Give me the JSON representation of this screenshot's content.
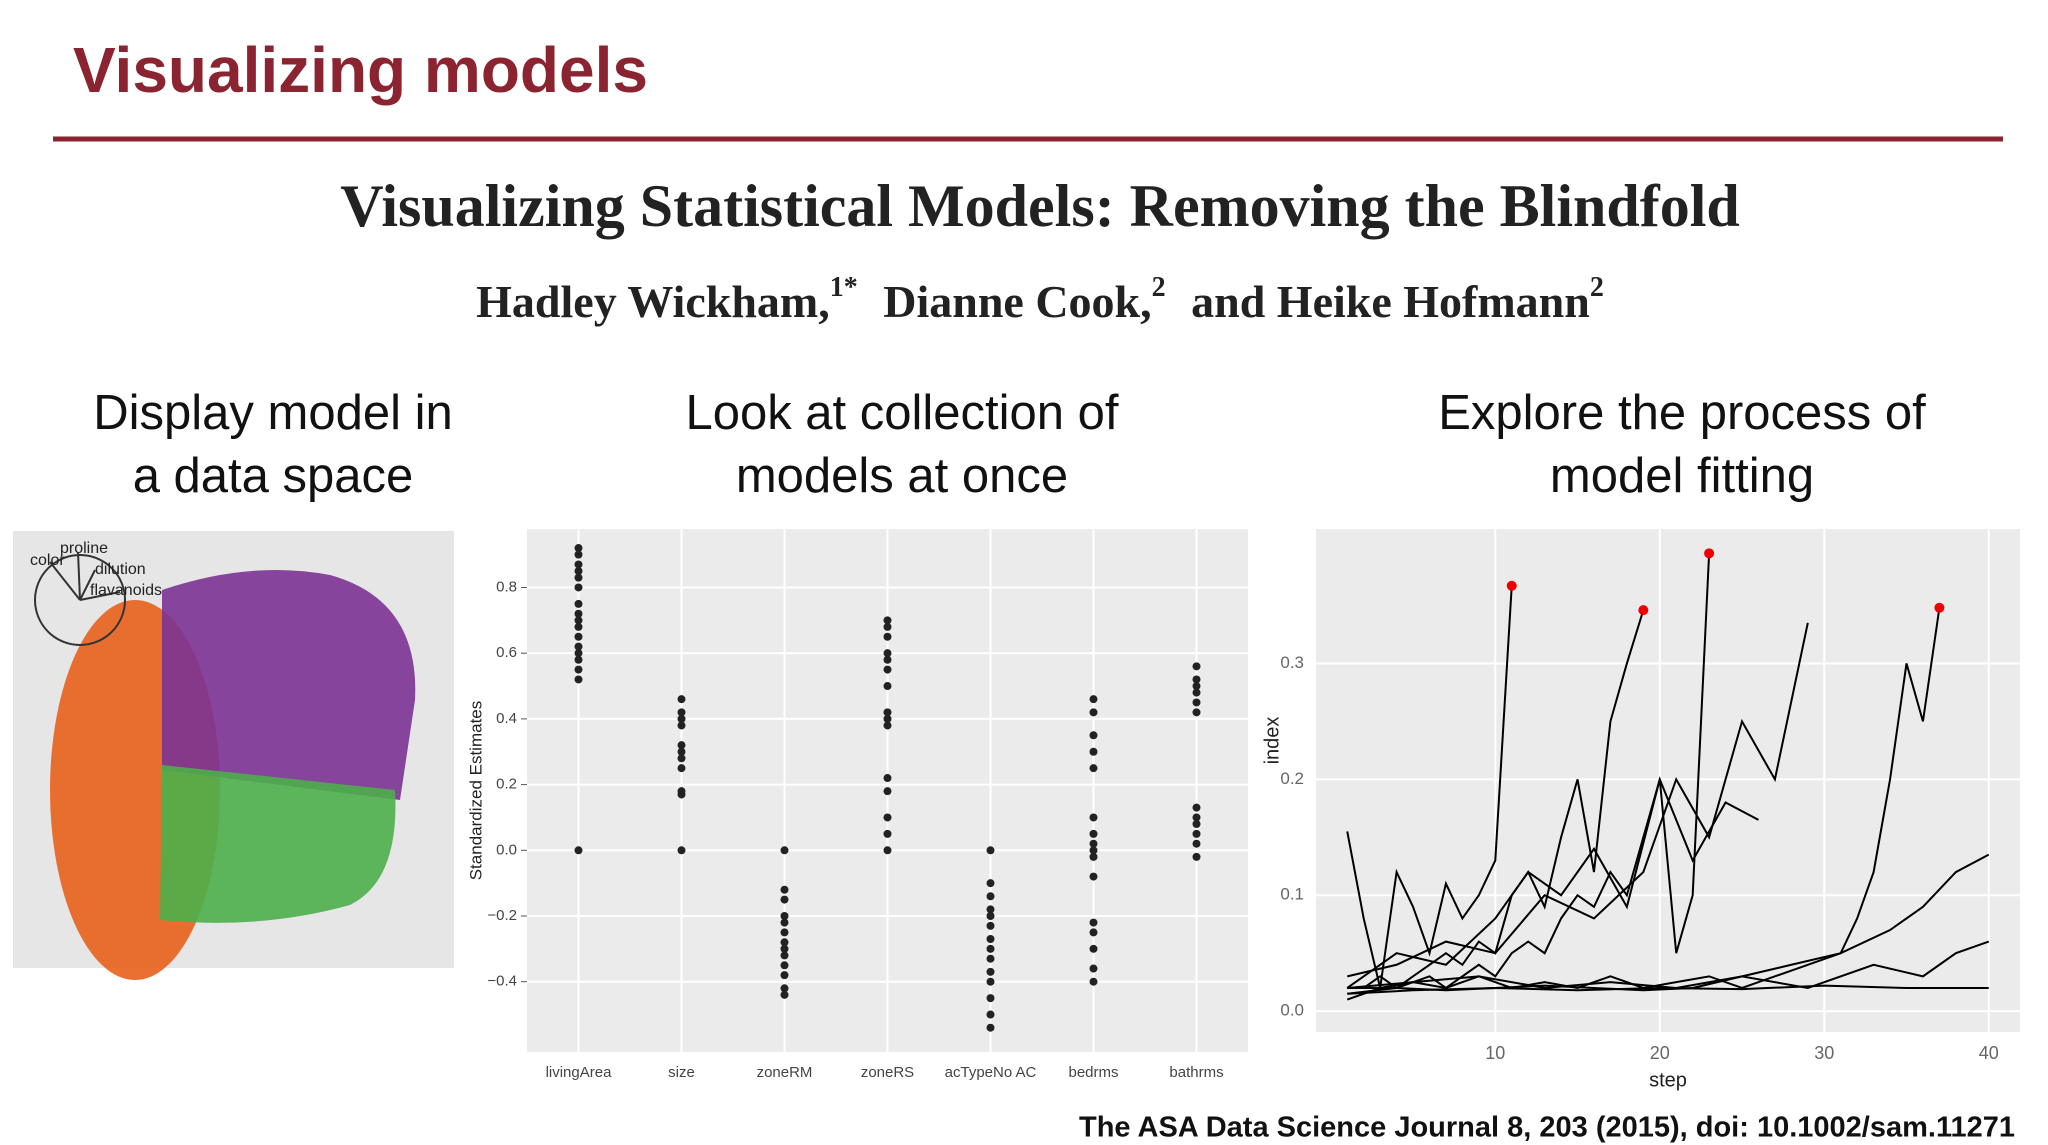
{
  "header": {
    "title": "Visualizing models"
  },
  "paper": {
    "title": "Visualizing Statistical Models: Removing the Blindfold",
    "authors": [
      {
        "name": "Hadley Wickham,",
        "sup": "1*"
      },
      {
        "name": "Dianne Cook,",
        "sup": "2"
      },
      {
        "name": "and Heike Hofmann",
        "sup": "2"
      }
    ]
  },
  "columns": [
    [
      "Display model in",
      "a data space"
    ],
    [
      "Look at collection of",
      "models at once"
    ],
    [
      "Explore the process of",
      "model fitting"
    ]
  ],
  "biplot": {
    "labels": [
      "proline",
      "color",
      "dilution",
      "flavanoids"
    ]
  },
  "chart_data": [
    {
      "type": "strip",
      "y_label": "Standardized Estimates",
      "categories": [
        "livingArea",
        "size",
        "zoneRM",
        "zoneRS",
        "acTypeNo AC",
        "bedrms",
        "bathrms"
      ],
      "values": [
        [
          0,
          0.52,
          0.55,
          0.58,
          0.6,
          0.62,
          0.65,
          0.68,
          0.7,
          0.72,
          0.75,
          0.8,
          0.83,
          0.85,
          0.87,
          0.9,
          0.92
        ],
        [
          0,
          0.17,
          0.18,
          0.25,
          0.28,
          0.3,
          0.32,
          0.38,
          0.4,
          0.42,
          0.46
        ],
        [
          0,
          -0.12,
          -0.15,
          -0.2,
          -0.22,
          -0.25,
          -0.28,
          -0.3,
          -0.32,
          -0.35,
          -0.38,
          -0.42,
          -0.44
        ],
        [
          0,
          0.05,
          0.1,
          0.18,
          0.22,
          0.38,
          0.4,
          0.42,
          0.5,
          0.55,
          0.58,
          0.6,
          0.65,
          0.68,
          0.7
        ],
        [
          0,
          -0.1,
          -0.14,
          -0.18,
          -0.2,
          -0.23,
          -0.27,
          -0.3,
          -0.33,
          -0.37,
          -0.4,
          -0.45,
          -0.5,
          -0.54
        ],
        [
          -0.4,
          -0.36,
          -0.3,
          -0.25,
          -0.22,
          -0.08,
          -0.02,
          0,
          0.02,
          0.05,
          0.1,
          0.25,
          0.3,
          0.35,
          0.42,
          0.46
        ],
        [
          -0.02,
          0.02,
          0.05,
          0.08,
          0.1,
          0.13,
          0.42,
          0.45,
          0.48,
          0.5,
          0.52,
          0.56
        ]
      ],
      "color": "#222222",
      "ylim": [
        -0.614,
        0.978
      ],
      "yticks": [
        {
          "value": -0.4,
          "label": "−0.4"
        },
        {
          "value": -0.2,
          "label": "−0.2"
        },
        {
          "value": 0,
          "label": "0.0"
        },
        0.2,
        0.4,
        0.6,
        0.8
      ],
      "grid": true
    },
    {
      "type": "line",
      "x_label": "step",
      "y_label": "index",
      "xlim": [
        -0.9,
        41.9
      ],
      "ylim": [
        -0.018,
        0.416
      ],
      "xticks": [
        10,
        20,
        30,
        40
      ],
      "yticks": [
        {
          "value": 0,
          "label": "0.0"
        },
        0.1,
        0.2,
        0.3
      ],
      "grid": true,
      "series": [
        {
          "color": "#000000",
          "x": [
            1,
            2,
            3,
            4,
            5,
            6,
            7,
            8,
            9,
            10,
            11
          ],
          "values": [
            0.155,
            0.08,
            0.02,
            0.12,
            0.09,
            0.05,
            0.11,
            0.08,
            0.1,
            0.13,
            0.367
          ]
        },
        {
          "color": "#000000",
          "x": [
            1,
            2,
            3,
            4,
            5,
            6,
            7,
            8,
            9,
            10,
            11,
            12,
            13,
            14,
            15,
            16,
            17,
            18,
            19
          ],
          "values": [
            0.02,
            0.02,
            0.03,
            0.02,
            0.03,
            0.04,
            0.05,
            0.04,
            0.06,
            0.05,
            0.1,
            0.12,
            0.09,
            0.15,
            0.2,
            0.12,
            0.25,
            0.3,
            0.346
          ]
        },
        {
          "color": "#000000",
          "x": [
            1,
            2,
            3,
            4,
            5,
            6,
            7,
            8,
            9,
            10,
            11,
            12,
            13,
            14,
            15,
            16,
            17,
            18,
            19,
            20,
            21,
            22,
            23
          ],
          "values": [
            0.01,
            0.015,
            0.02,
            0.02,
            0.025,
            0.03,
            0.02,
            0.03,
            0.04,
            0.03,
            0.05,
            0.06,
            0.05,
            0.08,
            0.1,
            0.09,
            0.12,
            0.1,
            0.15,
            0.2,
            0.05,
            0.1,
            0.395
          ]
        },
        {
          "color": "#000000",
          "x": [
            1,
            3,
            5,
            7,
            9,
            11,
            13,
            15,
            17,
            19,
            21,
            23,
            25,
            27,
            29,
            31,
            32,
            33,
            34,
            35,
            36,
            37
          ],
          "values": [
            0.02,
            0.02,
            0.025,
            0.02,
            0.03,
            0.02,
            0.025,
            0.02,
            0.03,
            0.02,
            0.025,
            0.03,
            0.02,
            0.03,
            0.04,
            0.05,
            0.08,
            0.12,
            0.2,
            0.3,
            0.25,
            0.348
          ]
        },
        {
          "color": "#000000",
          "x": [
            1,
            4,
            7,
            10,
            13,
            16,
            19,
            22,
            25,
            28,
            31,
            34,
            36,
            38,
            40
          ],
          "values": [
            0.015,
            0.02,
            0.018,
            0.02,
            0.022,
            0.02,
            0.018,
            0.02,
            0.03,
            0.04,
            0.05,
            0.07,
            0.09,
            0.12,
            0.135
          ]
        },
        {
          "color": "#000000",
          "x": [
            1,
            5,
            9,
            13,
            17,
            21,
            25,
            29,
            33,
            36,
            38,
            40
          ],
          "values": [
            0.02,
            0.025,
            0.03,
            0.02,
            0.025,
            0.02,
            0.03,
            0.02,
            0.04,
            0.03,
            0.05,
            0.06
          ]
        },
        {
          "color": "#000000",
          "x": [
            1,
            4,
            7,
            10,
            13,
            16,
            19,
            21,
            23,
            25,
            27,
            29
          ],
          "values": [
            0.03,
            0.04,
            0.06,
            0.05,
            0.1,
            0.08,
            0.12,
            0.2,
            0.15,
            0.25,
            0.2,
            0.335
          ]
        },
        {
          "color": "#000000",
          "x": [
            1,
            4,
            7,
            10,
            12,
            14,
            16,
            18,
            20,
            22,
            24,
            26
          ],
          "values": [
            0.02,
            0.05,
            0.04,
            0.08,
            0.12,
            0.1,
            0.14,
            0.09,
            0.2,
            0.13,
            0.18,
            0.165
          ]
        },
        {
          "color": "#000000",
          "x": [
            1,
            5,
            10,
            15,
            20,
            25,
            30,
            35,
            40
          ],
          "values": [
            0.015,
            0.018,
            0.02,
            0.018,
            0.02,
            0.019,
            0.022,
            0.02,
            0.02
          ]
        }
      ],
      "markers": {
        "color": "#ee0000",
        "x": [
          11,
          19,
          23,
          37
        ],
        "values": [
          0.367,
          0.346,
          0.395,
          0.348
        ]
      }
    }
  ],
  "citation": "The ASA Data Science Journal 8, 203 (2015),  doi: 10.1002/sam.11271"
}
